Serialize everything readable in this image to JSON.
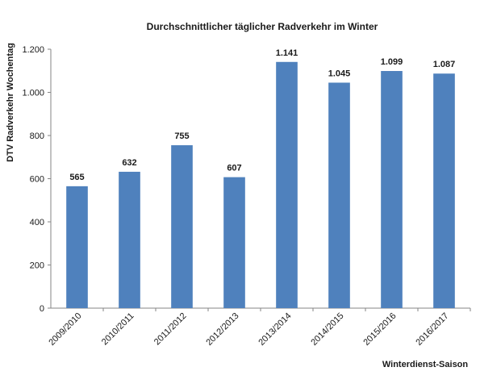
{
  "chart_data": {
    "type": "bar",
    "title": "Durchschnittlicher täglicher Radverkehr im Winter",
    "xlabel": "Winterdienst-Saison",
    "ylabel": "DTV Radverkehr Wochentag",
    "categories": [
      "2009/2010",
      "2010/2011",
      "2011/2012",
      "2012/2013",
      "2013/2014",
      "2014/2015",
      "2015/2016",
      "2016/2017"
    ],
    "values": [
      565,
      632,
      755,
      607,
      1141,
      1045,
      1099,
      1087
    ],
    "data_labels": [
      "565",
      "632",
      "755",
      "607",
      "1.141",
      "1.045",
      "1.099",
      "1.087"
    ],
    "ylim": [
      0,
      1200
    ],
    "yticks": [
      0,
      200,
      400,
      600,
      800,
      1000,
      1200
    ],
    "ytick_labels": [
      "0",
      "200",
      "400",
      "600",
      "800",
      "1.000",
      "1.200"
    ],
    "bar_color": "#4f81bd",
    "grid": false,
    "legend": "none"
  }
}
